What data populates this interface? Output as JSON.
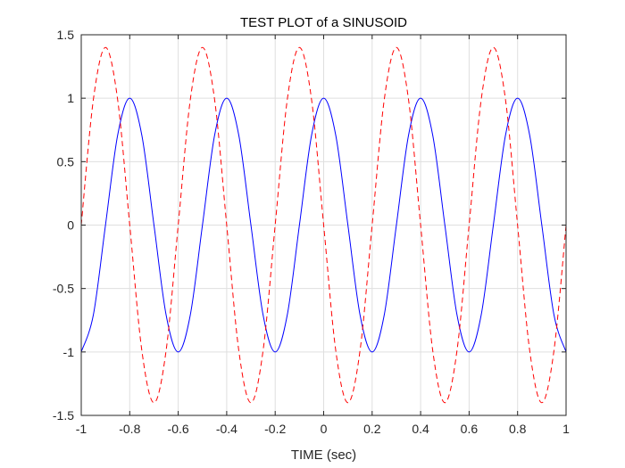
{
  "chart_data": {
    "type": "line",
    "title": "TEST PLOT of a SINUSOID",
    "xlabel": "TIME (sec)",
    "ylabel": "",
    "xlim": [
      -1,
      1
    ],
    "ylim": [
      -1.5,
      1.5
    ],
    "x_ticks": [
      -1,
      -0.8,
      -0.6,
      -0.4,
      -0.2,
      0,
      0.2,
      0.4,
      0.6,
      0.8,
      1
    ],
    "x_tick_labels": [
      "-1",
      "-0.8",
      "-0.6",
      "-0.4",
      "-0.2",
      "0",
      "0.2",
      "0.4",
      "0.6",
      "0.8",
      "1"
    ],
    "y_ticks": [
      -1.5,
      -1,
      -0.5,
      0,
      0.5,
      1,
      1.5
    ],
    "y_tick_labels": [
      "-1.5",
      "-1",
      "-0.5",
      "0",
      "0.5",
      "1",
      "1.5"
    ],
    "grid": true,
    "x": [
      -1,
      -0.95,
      -0.9,
      -0.85,
      -0.8,
      -0.75,
      -0.7,
      -0.65,
      -0.6,
      -0.55,
      -0.5,
      -0.45,
      -0.4,
      -0.35,
      -0.3,
      -0.25,
      -0.2,
      -0.15,
      -0.1,
      -0.05,
      0,
      0.05,
      0.1,
      0.15,
      0.2,
      0.25,
      0.3,
      0.35,
      0.4,
      0.45,
      0.5,
      0.55,
      0.6,
      0.65,
      0.7,
      0.75,
      0.8,
      0.85,
      0.9,
      0.95,
      1
    ],
    "series": [
      {
        "color": "#0000ff",
        "line_style": "solid",
        "values": [
          -1,
          -0.7071,
          0,
          0.7071,
          1,
          0.7071,
          0,
          -0.7071,
          -1,
          -0.7071,
          0,
          0.7071,
          1,
          0.7071,
          0,
          -0.7071,
          -1,
          -0.7071,
          0,
          0.7071,
          1,
          0.7071,
          0,
          -0.7071,
          -1,
          -0.7071,
          0,
          0.7071,
          1,
          0.7071,
          0,
          -0.7071,
          -1,
          -0.7071,
          0,
          0.7071,
          1,
          0.7071,
          0,
          -0.7071,
          -1
        ]
      },
      {
        "color": "#ff0000",
        "line_style": "dashed",
        "values": [
          0,
          0.99,
          1.4,
          0.99,
          0,
          -0.99,
          -1.4,
          -0.99,
          0,
          0.99,
          1.4,
          0.99,
          0,
          -0.99,
          -1.4,
          -0.99,
          0,
          0.99,
          1.4,
          0.99,
          0,
          -0.99,
          -1.4,
          -0.99,
          0,
          0.99,
          1.4,
          0.99,
          0,
          -0.99,
          -1.4,
          -0.99,
          0,
          0.99,
          1.4,
          0.99,
          0,
          -0.99,
          -1.4,
          -0.99,
          0
        ]
      }
    ]
  }
}
